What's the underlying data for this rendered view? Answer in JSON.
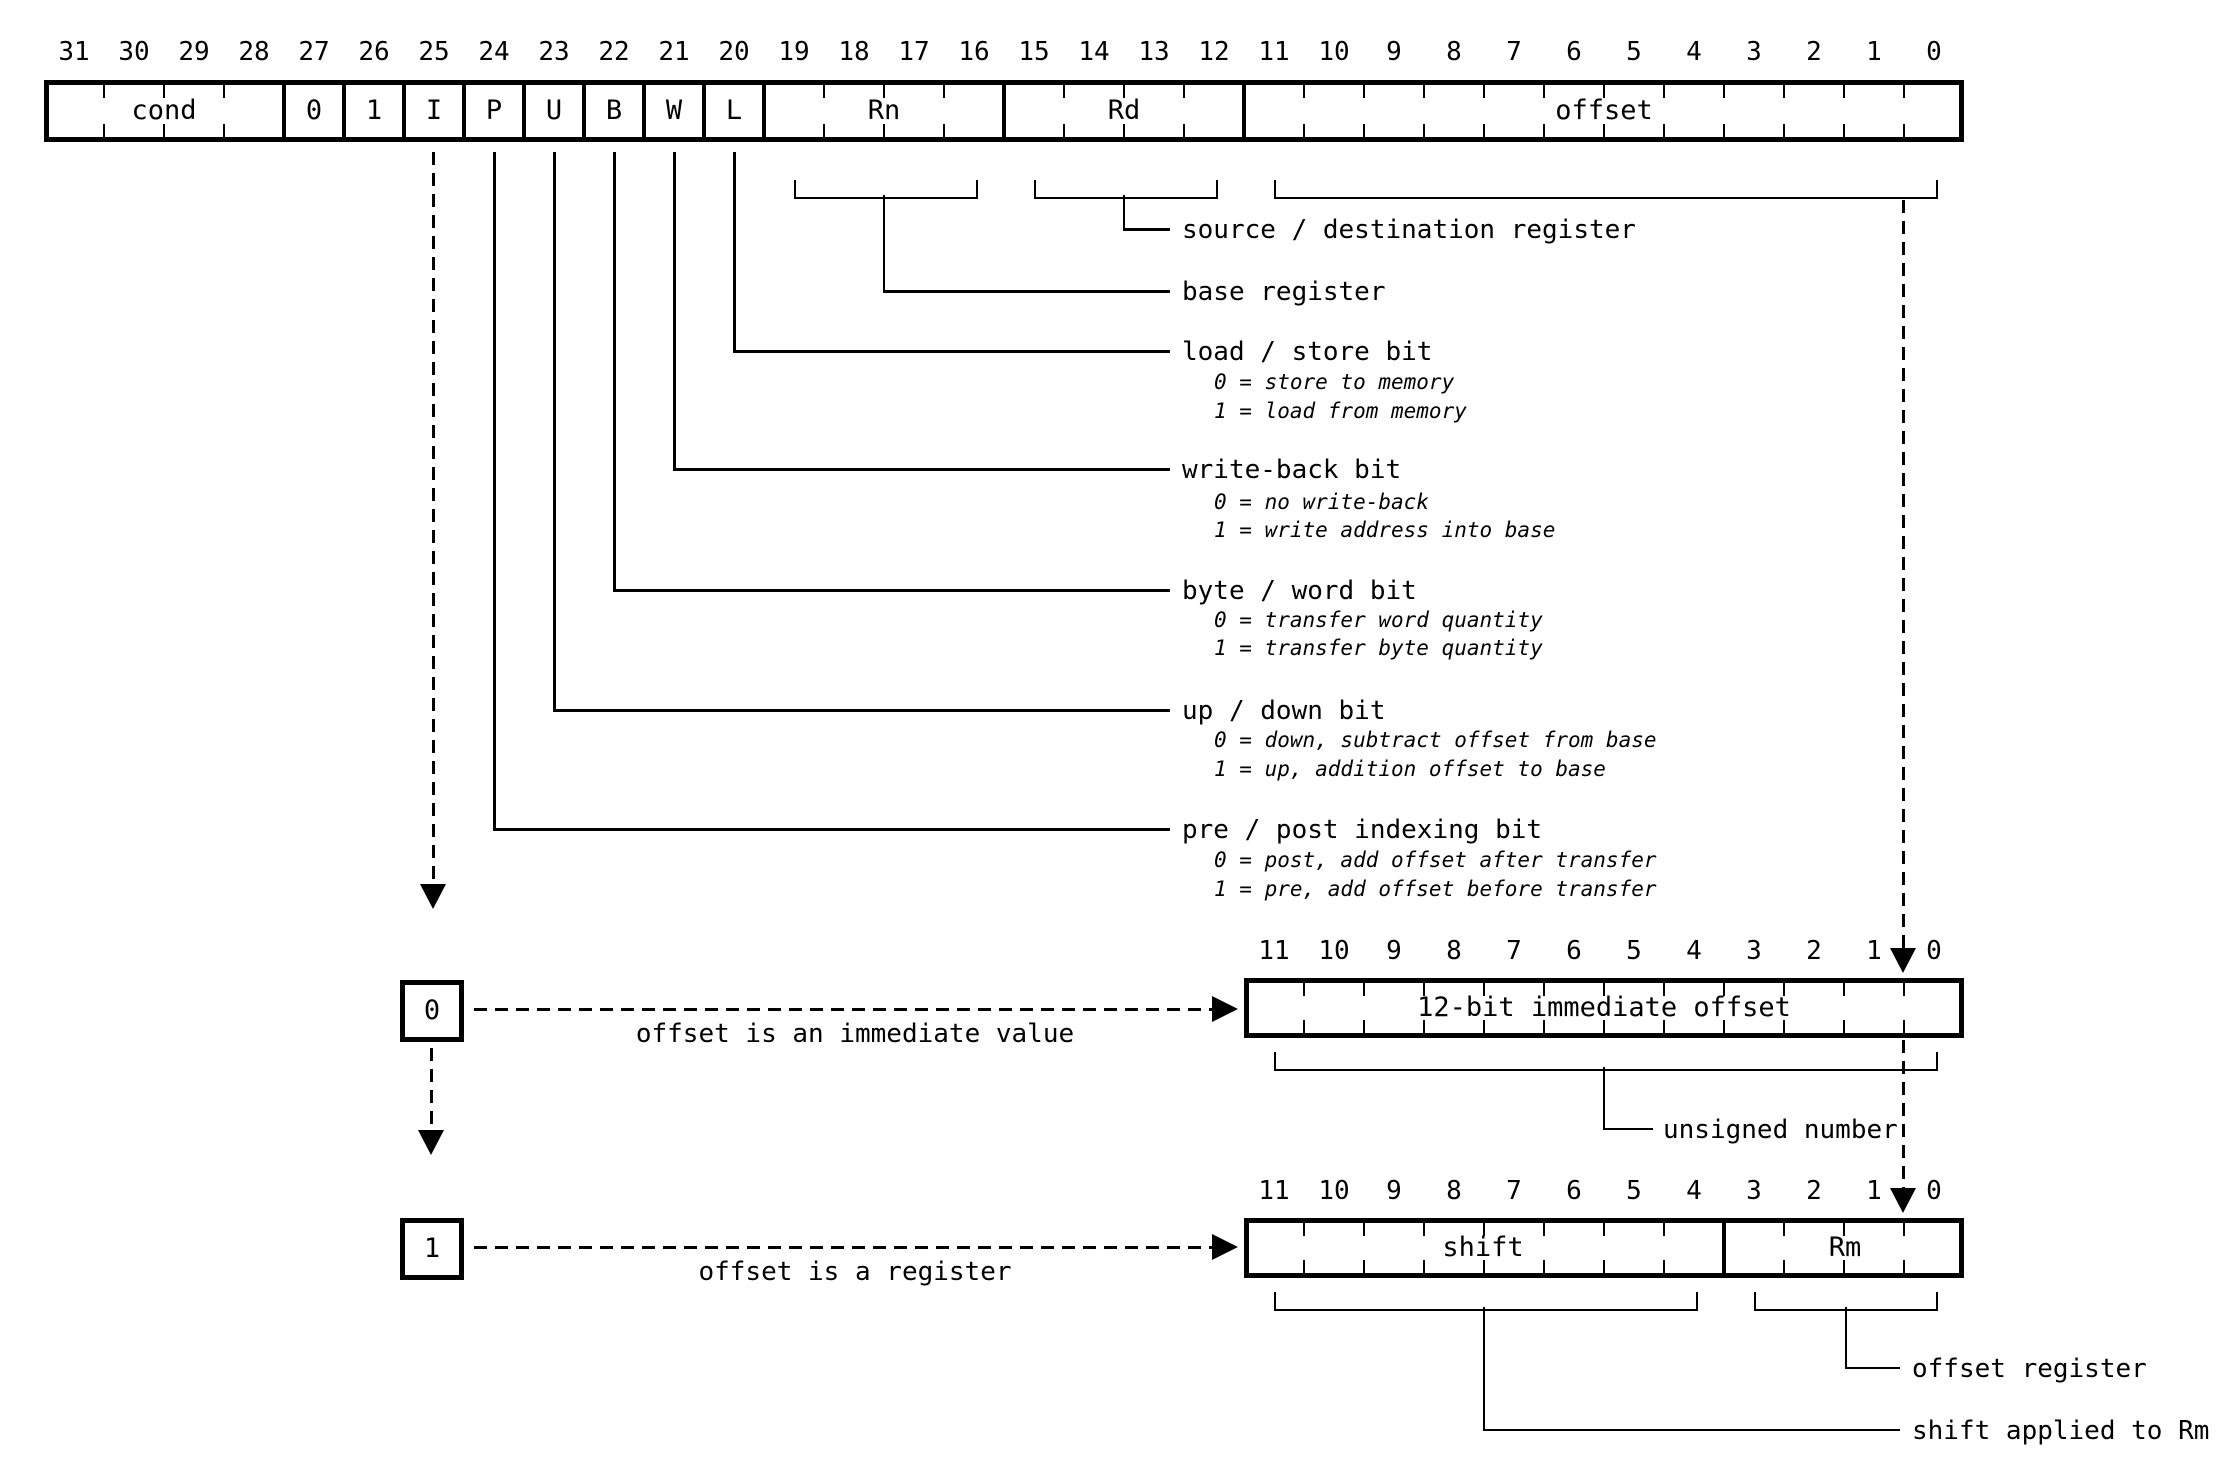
{
  "colors": {
    "ink": "#000000",
    "background": "#ffffff"
  },
  "top": {
    "bit_labels": [
      "31",
      "30",
      "29",
      "28",
      "27",
      "26",
      "25",
      "24",
      "23",
      "22",
      "21",
      "20",
      "19",
      "18",
      "17",
      "16",
      "15",
      "14",
      "13",
      "12",
      "11",
      "10",
      "9",
      "8",
      "7",
      "6",
      "5",
      "4",
      "3",
      "2",
      "1",
      "0"
    ],
    "fields": {
      "cond": "cond",
      "b27": "0",
      "b26": "1",
      "i": "I",
      "p": "P",
      "u": "U",
      "b": "B",
      "w": "W",
      "l": "L",
      "rn": "Rn",
      "rd": "Rd",
      "offset": "offset"
    }
  },
  "annotations": {
    "source_dest": "source / destination register",
    "base": "base register",
    "load_store": {
      "title": "load / store bit",
      "opt0": "0 = store to memory",
      "opt1": "1 = load from memory"
    },
    "write_back": {
      "title": "write-back bit",
      "opt0": "0 = no write-back",
      "opt1": "1 = write address into base"
    },
    "byte_word": {
      "title": "byte / word bit",
      "opt0": "0 = transfer word quantity",
      "opt1": "1 = transfer byte quantity"
    },
    "up_down": {
      "title": "up / down bit",
      "opt0": "0 = down, subtract offset from base",
      "opt1": "1 = up, addition offset to base"
    },
    "pre_post": {
      "title": "pre / post indexing bit",
      "opt0": "0 = post, add offset after transfer",
      "opt1": "1 = pre, add offset before transfer"
    }
  },
  "immediate_branch": {
    "selector": "0",
    "caption": "offset is an immediate value",
    "bit_labels": [
      "11",
      "10",
      "9",
      "8",
      "7",
      "6",
      "5",
      "4",
      "3",
      "2",
      "1",
      "0"
    ],
    "field": "12-bit immediate offset",
    "note": "unsigned number"
  },
  "register_branch": {
    "selector": "1",
    "caption": "offset is a register",
    "bit_labels": [
      "11",
      "10",
      "9",
      "8",
      "7",
      "6",
      "5",
      "4",
      "3",
      "2",
      "1",
      "0"
    ],
    "shift_field": "shift",
    "rm_field": "Rm",
    "note_rm": "offset register",
    "note_shift": "shift applied to Rm"
  }
}
